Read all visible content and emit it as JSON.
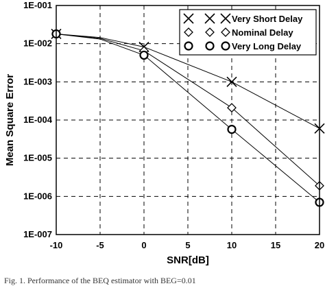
{
  "chart_data": {
    "type": "line",
    "title": "",
    "xlabel": "SNR[dB]",
    "ylabel": "Mean Square Error",
    "y_scale": "log",
    "x_range": [
      -10,
      20
    ],
    "y_range": [
      1e-07,
      0.1
    ],
    "x_ticks": [
      "-10",
      "-5",
      "0",
      "5",
      "10",
      "15",
      "20"
    ],
    "y_ticks": [
      "1E-001",
      "1E-002",
      "1E-003",
      "1E-004",
      "1E-005",
      "1E-006",
      "1E-007"
    ],
    "grid": "dashed",
    "legend_position": "top-right",
    "series": [
      {
        "name": "Very Short Delay",
        "marker": "x",
        "points": [
          {
            "x": -10,
            "y": 0.018
          },
          {
            "x": -5,
            "y": 0.0145
          },
          {
            "x": 0,
            "y": 0.0082
          },
          {
            "x": 10,
            "y": 0.001
          },
          {
            "x": 20,
            "y": 6e-05
          }
        ]
      },
      {
        "name": "Nominal Delay",
        "marker": "diamond",
        "points": [
          {
            "x": -10,
            "y": 0.018
          },
          {
            "x": -5,
            "y": 0.0138
          },
          {
            "x": 0,
            "y": 0.0065
          },
          {
            "x": 10,
            "y": 0.00021
          },
          {
            "x": 20,
            "y": 1.9e-06
          }
        ]
      },
      {
        "name": "Very Long Delay",
        "marker": "circle",
        "points": [
          {
            "x": -10,
            "y": 0.018
          },
          {
            "x": -5,
            "y": 0.0132
          },
          {
            "x": 0,
            "y": 0.005
          },
          {
            "x": 10,
            "y": 5.7e-05
          },
          {
            "x": 20,
            "y": 7e-07
          }
        ]
      }
    ]
  },
  "caption": "Fig. 1.  Performance of the BEQ estimator with BEG=0.01"
}
